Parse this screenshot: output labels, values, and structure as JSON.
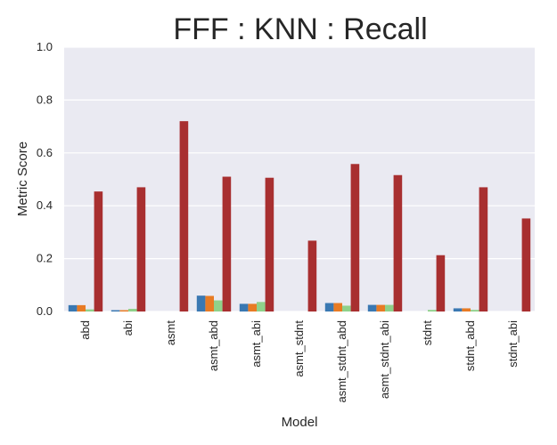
{
  "chart_data": {
    "type": "bar",
    "title": "FFF : KNN : Recall",
    "xlabel": "Model",
    "ylabel": "Metric Score",
    "ylim": [
      0,
      1.0
    ],
    "yticks": [
      "0.0",
      "0.2",
      "0.4",
      "0.6",
      "0.8",
      "1.0"
    ],
    "grid": true,
    "legend": "none",
    "categories": [
      "abd",
      "abi",
      "asmt",
      "asmt_abd",
      "asmt_abi",
      "asmt_stdnt",
      "asmt_stdnt_abd",
      "asmt_stdnt_abi",
      "stdnt",
      "stdnt_abd",
      "stdnt_abi"
    ],
    "series": [
      {
        "color": "#3a78b2",
        "values": [
          0.024,
          0.005,
          0.0,
          0.06,
          0.029,
          0.0,
          0.032,
          0.025,
          0.0,
          0.012,
          0.0
        ]
      },
      {
        "color": "#e87b24",
        "values": [
          0.024,
          0.005,
          0.0,
          0.059,
          0.029,
          0.0,
          0.032,
          0.025,
          0.0,
          0.012,
          0.0
        ]
      },
      {
        "color": "#8fd18a",
        "values": [
          0.008,
          0.01,
          0.0,
          0.042,
          0.036,
          0.0,
          0.022,
          0.025,
          0.006,
          0.006,
          0.0
        ]
      },
      {
        "color": "#a82f30",
        "values": [
          0.454,
          0.47,
          0.72,
          0.51,
          0.506,
          0.268,
          0.558,
          0.516,
          0.213,
          0.47,
          0.352
        ]
      }
    ]
  }
}
